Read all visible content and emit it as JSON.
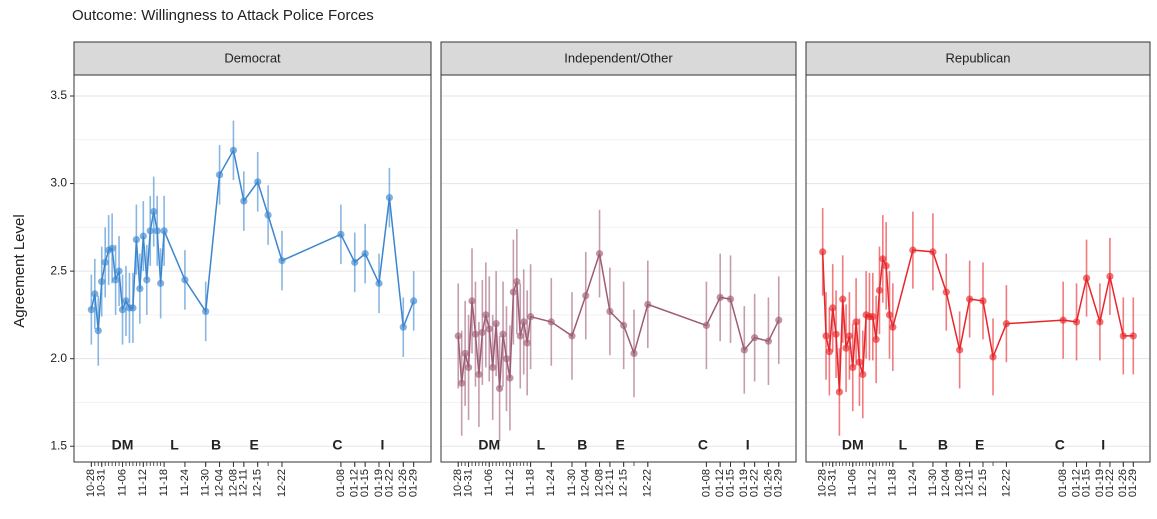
{
  "title": "Outcome:  Willingness to Attack Police Forces",
  "y_label": "Agreement Level",
  "chart_data": [
    {
      "type": "line",
      "title": "Democrat",
      "x": [
        "10-28",
        "10-29",
        "10-30",
        "10-31",
        "11-01",
        "11-02",
        "11-03",
        "11-04",
        "11-05",
        "11-06",
        "11-07",
        "11-08",
        "11-09",
        "11-10",
        "11-11",
        "11-12",
        "11-13",
        "11-14",
        "11-15",
        "11-16",
        "11-17",
        "11-18",
        "11-24",
        "11-30",
        "12-04",
        "12-08",
        "12-11",
        "12-15",
        "12-18",
        "12-22",
        "01-08",
        "01-12",
        "01-15",
        "01-19",
        "01-22",
        "01-26",
        "01-29"
      ],
      "series": [
        {
          "color": "#3a86d0",
          "values": [
            2.28,
            2.37,
            2.16,
            2.44,
            2.55,
            2.62,
            2.63,
            2.45,
            2.5,
            2.28,
            2.33,
            2.29,
            2.29,
            2.68,
            2.4,
            2.7,
            2.45,
            2.73,
            2.84,
            2.73,
            2.43,
            2.73,
            2.45,
            2.27,
            3.05,
            3.19,
            2.9,
            3.01,
            2.82,
            2.56,
            2.71,
            2.55,
            2.6,
            2.43,
            2.92,
            2.18,
            2.33
          ],
          "errors": [
            0.2,
            0.2,
            0.2,
            0.2,
            0.2,
            0.2,
            0.2,
            0.2,
            0.2,
            0.2,
            0.2,
            0.2,
            0.2,
            0.2,
            0.2,
            0.2,
            0.2,
            0.2,
            0.2,
            0.2,
            0.2,
            0.2,
            0.17,
            0.17,
            0.17,
            0.17,
            0.17,
            0.17,
            0.17,
            0.17,
            0.17,
            0.17,
            0.17,
            0.17,
            0.17,
            0.17,
            0.17
          ]
        }
      ],
      "xlim": [
        "10-23",
        "02-03"
      ],
      "xticks": [
        "10-28",
        "10-31",
        "11-06",
        "11-12",
        "11-18",
        "11-24",
        "11-30",
        "12-04",
        "12-08",
        "12-11",
        "12-15",
        "12-22",
        "01-08",
        "01-12",
        "01-15",
        "01-19",
        "01-22",
        "01-26",
        "01-29"
      ],
      "ylim": [
        1.41,
        3.62
      ],
      "yticks": [
        1.5,
        {
          "value": 2,
          "label": "2.0"
        },
        2.5,
        {
          "value": 3,
          "label": "3.0"
        },
        3.5
      ],
      "annotations": [
        {
          "text": "DM",
          "x": "11-06"
        },
        {
          "text": "L",
          "x": "11-21"
        },
        {
          "text": "B",
          "x": "12-03"
        },
        {
          "text": "E",
          "x": "12-14"
        },
        {
          "text": "C",
          "x": "01-07"
        },
        {
          "text": "I",
          "x": "01-20"
        }
      ]
    },
    {
      "type": "line",
      "title": "Independent/Other",
      "x": [
        "10-28",
        "10-29",
        "10-30",
        "10-31",
        "11-01",
        "11-02",
        "11-03",
        "11-04",
        "11-05",
        "11-06",
        "11-07",
        "11-08",
        "11-09",
        "11-10",
        "11-11",
        "11-12",
        "11-13",
        "11-14",
        "11-15",
        "11-16",
        "11-17",
        "11-18",
        "11-24",
        "11-30",
        "12-04",
        "12-08",
        "12-11",
        "12-15",
        "12-18",
        "12-22",
        "01-08",
        "01-12",
        "01-15",
        "01-19",
        "01-22",
        "01-26",
        "01-29"
      ],
      "series": [
        {
          "color": "#9e5c74",
          "values": [
            2.13,
            1.86,
            2.03,
            1.95,
            2.33,
            2.14,
            1.91,
            2.15,
            2.25,
            2.17,
            1.95,
            2.2,
            1.83,
            2.14,
            2.0,
            1.89,
            2.38,
            2.44,
            2.13,
            2.21,
            2.09,
            2.24,
            2.21,
            2.13,
            2.36,
            2.6,
            2.27,
            2.19,
            2.03,
            2.31,
            2.19,
            2.35,
            2.34,
            2.05,
            2.12,
            2.1,
            2.22
          ],
          "errors": [
            0.3,
            0.3,
            0.3,
            0.3,
            0.3,
            0.3,
            0.3,
            0.3,
            0.3,
            0.3,
            0.3,
            0.3,
            0.3,
            0.3,
            0.3,
            0.3,
            0.3,
            0.3,
            0.3,
            0.3,
            0.3,
            0.3,
            0.25,
            0.25,
            0.25,
            0.25,
            0.25,
            0.25,
            0.25,
            0.25,
            0.25,
            0.25,
            0.25,
            0.25,
            0.25,
            0.25,
            0.25
          ]
        }
      ],
      "xlim": [
        "10-23",
        "02-03"
      ],
      "xticks": [
        "10-28",
        "10-31",
        "11-06",
        "11-12",
        "11-18",
        "11-24",
        "11-30",
        "12-04",
        "12-08",
        "12-11",
        "12-15",
        "12-22",
        "01-08",
        "01-12",
        "01-15",
        "01-19",
        "01-22",
        "01-26",
        "01-29"
      ],
      "ylim": [
        1.41,
        3.62
      ],
      "yticks": [
        1.5,
        {
          "value": 2,
          "label": "2.0"
        },
        2.5,
        {
          "value": 3,
          "label": "3.0"
        },
        3.5
      ],
      "annotations": [
        {
          "text": "DM",
          "x": "11-06"
        },
        {
          "text": "L",
          "x": "11-21"
        },
        {
          "text": "B",
          "x": "12-03"
        },
        {
          "text": "E",
          "x": "12-14"
        },
        {
          "text": "C",
          "x": "01-07"
        },
        {
          "text": "I",
          "x": "01-20"
        }
      ]
    },
    {
      "type": "line",
      "title": "Republican",
      "x": [
        "10-28",
        "10-29",
        "10-30",
        "10-31",
        "11-01",
        "11-02",
        "11-03",
        "11-04",
        "11-05",
        "11-06",
        "11-07",
        "11-08",
        "11-09",
        "11-10",
        "11-11",
        "11-12",
        "11-13",
        "11-14",
        "11-15",
        "11-16",
        "11-17",
        "11-18",
        "11-24",
        "11-30",
        "12-04",
        "12-08",
        "12-11",
        "12-15",
        "12-18",
        "12-22",
        "01-08",
        "01-12",
        "01-15",
        "01-19",
        "01-22",
        "01-26",
        "01-29"
      ],
      "series": [
        {
          "color": "#e8252a",
          "values": [
            2.61,
            2.13,
            2.04,
            2.29,
            2.14,
            1.81,
            2.34,
            2.06,
            2.13,
            1.95,
            2.21,
            1.98,
            1.91,
            2.25,
            2.24,
            2.24,
            2.11,
            2.39,
            2.57,
            2.53,
            2.25,
            2.18,
            2.62,
            2.61,
            2.38,
            2.05,
            2.34,
            2.33,
            2.01,
            2.2,
            2.22,
            2.21,
            2.46,
            2.21,
            2.47,
            2.13,
            2.13
          ],
          "errors": [
            0.25,
            0.25,
            0.25,
            0.25,
            0.25,
            0.25,
            0.25,
            0.25,
            0.25,
            0.25,
            0.25,
            0.25,
            0.25,
            0.25,
            0.25,
            0.25,
            0.25,
            0.25,
            0.25,
            0.25,
            0.25,
            0.25,
            0.22,
            0.22,
            0.22,
            0.22,
            0.22,
            0.22,
            0.22,
            0.22,
            0.22,
            0.22,
            0.22,
            0.22,
            0.22,
            0.22,
            0.22
          ]
        }
      ],
      "xlim": [
        "10-23",
        "02-03"
      ],
      "xticks": [
        "10-28",
        "10-31",
        "11-06",
        "11-12",
        "11-18",
        "11-24",
        "11-30",
        "12-04",
        "12-08",
        "12-11",
        "12-15",
        "12-22",
        "01-08",
        "01-12",
        "01-15",
        "01-19",
        "01-22",
        "01-26",
        "01-29"
      ],
      "ylim": [
        1.41,
        3.62
      ],
      "yticks": [
        1.5,
        {
          "value": 2,
          "label": "2.0"
        },
        2.5,
        {
          "value": 3,
          "label": "3.0"
        },
        3.5
      ],
      "annotations": [
        {
          "text": "DM",
          "x": "11-06"
        },
        {
          "text": "L",
          "x": "11-21"
        },
        {
          "text": "B",
          "x": "12-03"
        },
        {
          "text": "E",
          "x": "12-14"
        },
        {
          "text": "C",
          "x": "01-07"
        },
        {
          "text": "I",
          "x": "01-20"
        }
      ]
    }
  ]
}
